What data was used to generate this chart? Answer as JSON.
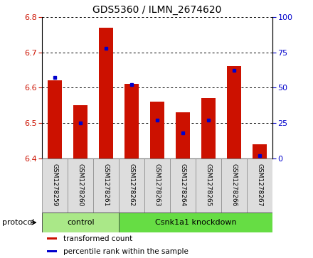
{
  "title": "GDS5360 / ILMN_2674620",
  "samples": [
    "GSM1278259",
    "GSM1278260",
    "GSM1278261",
    "GSM1278262",
    "GSM1278263",
    "GSM1278264",
    "GSM1278265",
    "GSM1278266",
    "GSM1278267"
  ],
  "transformed_counts": [
    6.62,
    6.55,
    6.77,
    6.61,
    6.56,
    6.53,
    6.57,
    6.66,
    6.44
  ],
  "percentile_ranks": [
    57,
    25,
    78,
    52,
    27,
    18,
    27,
    62,
    2
  ],
  "ylim_left": [
    6.4,
    6.8
  ],
  "ylim_right": [
    0,
    100
  ],
  "yticks_left": [
    6.4,
    6.5,
    6.6,
    6.7,
    6.8
  ],
  "yticks_right": [
    0,
    25,
    50,
    75,
    100
  ],
  "bar_color": "#cc1100",
  "dot_color": "#0000cc",
  "base_value": 6.4,
  "groups": [
    {
      "label": "control",
      "start": 0,
      "end": 3,
      "color": "#aae888"
    },
    {
      "label": "Csnk1a1 knockdown",
      "start": 3,
      "end": 9,
      "color": "#66dd44"
    }
  ],
  "protocol_label": "protocol",
  "legend_items": [
    {
      "label": "transformed count",
      "color": "#cc1100"
    },
    {
      "label": "percentile rank within the sample",
      "color": "#0000cc"
    }
  ],
  "tick_label_color_left": "#cc1100",
  "tick_label_color_right": "#0000cc",
  "cell_bg_color": "#dddddd",
  "cell_edge_color": "#888888"
}
